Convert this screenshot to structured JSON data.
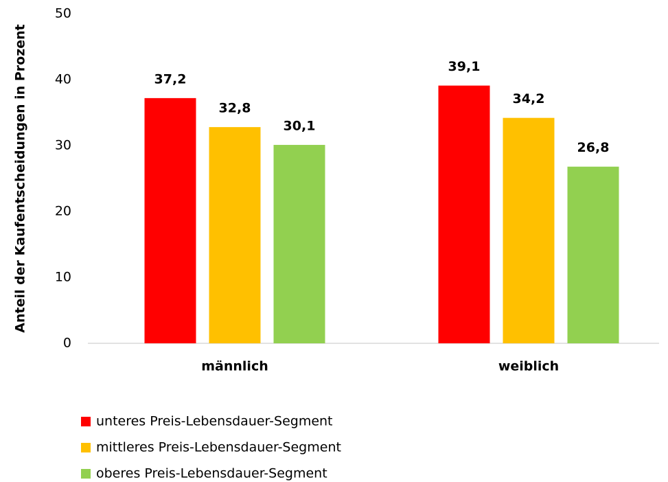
{
  "chart_data": {
    "type": "bar",
    "ylabel": "Anteil der Kaufentscheidungen in Prozent",
    "categories": [
      "männlich",
      "weiblich"
    ],
    "series": [
      {
        "name": "unteres Preis-Lebensdauer-Segment",
        "color": "#ff0000",
        "values": [
          37.2,
          39.1
        ],
        "value_labels": [
          "37,2",
          "39,1"
        ]
      },
      {
        "name": "mittleres Preis-Lebensdauer-Segment",
        "color": "#ffc000",
        "values": [
          32.8,
          34.2
        ],
        "value_labels": [
          "32,8",
          "34,2"
        ]
      },
      {
        "name": "oberes Preis-Lebensdauer-Segment",
        "color": "#92d050",
        "values": [
          30.1,
          26.8
        ],
        "value_labels": [
          "30,1",
          "26,8"
        ]
      }
    ],
    "ylim": [
      0,
      50
    ],
    "yticks": [
      0,
      10,
      20,
      30,
      40,
      50
    ],
    "grid": false,
    "legend": "bottom"
  }
}
